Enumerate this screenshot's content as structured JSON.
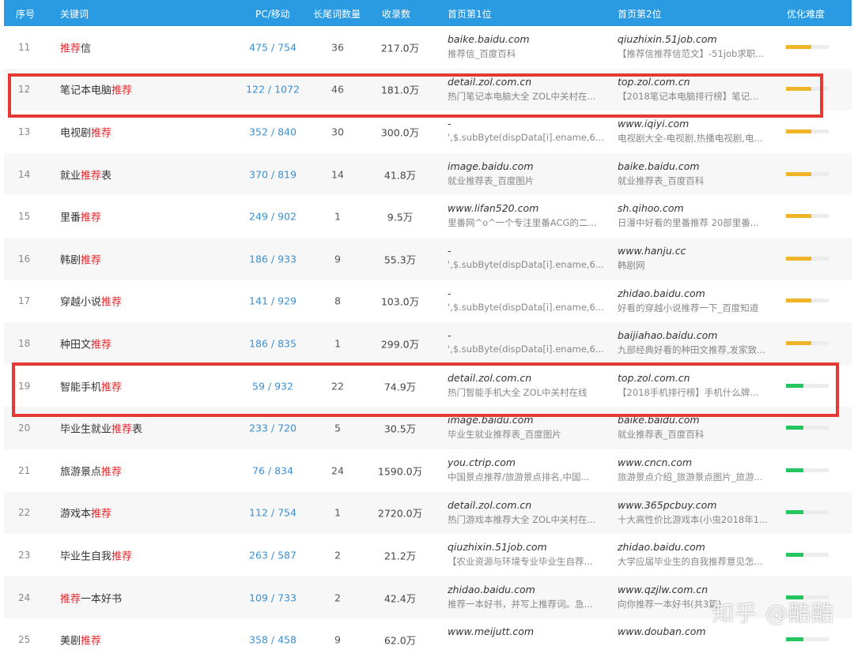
{
  "header": {
    "idx": "序号",
    "keyword": "关键词",
    "pc_mobile": "PC/移动",
    "longtail": "长尾词数量",
    "indexed": "收录数",
    "rank1": "首页第1位",
    "rank2": "首页第2位",
    "difficulty": "优化难度"
  },
  "colors": {
    "header": "#2a9ae3",
    "highlight": "#e8262b",
    "difficulty_medium": "#f0b429",
    "difficulty_low": "#22c55e",
    "annotation": "#e53935"
  },
  "rows": [
    {
      "idx": "11",
      "kw_pre": "",
      "kw_hl": "推荐",
      "kw_post": "信",
      "pc": "475 / 754",
      "lt": "36",
      "sl": "217.0万",
      "r1d": "baike.baidu.com",
      "r1t": "推荐信_百度百科",
      "r2d": "qiuzhixin.51job.com",
      "r2t": "【推荐信推荐信范文】-51job求职...",
      "difficulty": 0.6,
      "level": "medium"
    },
    {
      "idx": "12",
      "kw_pre": "笔记本电脑",
      "kw_hl": "推荐",
      "kw_post": "",
      "pc": "122 / 1072",
      "lt": "46",
      "sl": "181.0万",
      "r1d": "detail.zol.com.cn",
      "r1t": "热门笔记本电脑大全 ZOL中关村在...",
      "r2d": "top.zol.com.cn",
      "r2t": "【2018笔记本电脑排行榜】笔记...",
      "difficulty": 0.6,
      "level": "medium"
    },
    {
      "idx": "13",
      "kw_pre": "电视剧",
      "kw_hl": "推荐",
      "kw_post": "",
      "pc": "352 / 840",
      "lt": "30",
      "sl": "300.0万",
      "r1d": "-",
      "r1t": "',$.subByte(dispData[i].ename,6...",
      "r2d": "www.iqiyi.com",
      "r2t": "电视剧大全-电视剧,热播电视剧,电...",
      "difficulty": 0.6,
      "level": "medium"
    },
    {
      "idx": "14",
      "kw_pre": "就业",
      "kw_hl": "推荐",
      "kw_post": "表",
      "pc": "370 / 819",
      "lt": "14",
      "sl": "41.8万",
      "r1d": "image.baidu.com",
      "r1t": "就业推荐表_百度图片",
      "r2d": "baike.baidu.com",
      "r2t": "就业推荐表_百度百科",
      "difficulty": 0.6,
      "level": "medium"
    },
    {
      "idx": "15",
      "kw_pre": "里番",
      "kw_hl": "推荐",
      "kw_post": "",
      "pc": "249 / 902",
      "lt": "1",
      "sl": "9.5万",
      "r1d": "www.lifan520.com",
      "r1t": "里番网^o^一个专注里番ACG的二...",
      "r2d": "sh.qihoo.com",
      "r2t": "日漫中好看的里番推荐 20部里番...",
      "difficulty": 0.6,
      "level": "medium"
    },
    {
      "idx": "16",
      "kw_pre": "韩剧",
      "kw_hl": "推荐",
      "kw_post": "",
      "pc": "186 / 933",
      "lt": "9",
      "sl": "55.3万",
      "r1d": "-",
      "r1t": "',$.subByte(dispData[i].ename,6...",
      "r2d": "www.hanju.cc",
      "r2t": "韩剧网",
      "difficulty": 0.6,
      "level": "medium"
    },
    {
      "idx": "17",
      "kw_pre": "穿越小说",
      "kw_hl": "推荐",
      "kw_post": "",
      "pc": "141 / 929",
      "lt": "8",
      "sl": "103.0万",
      "r1d": "-",
      "r1t": "',$.subByte(dispData[i].ename,6...",
      "r2d": "zhidao.baidu.com",
      "r2t": "好看的穿越小说推荐一下_百度知道",
      "difficulty": 0.6,
      "level": "medium"
    },
    {
      "idx": "18",
      "kw_pre": "种田文",
      "kw_hl": "推荐",
      "kw_post": "",
      "pc": "186 / 835",
      "lt": "1",
      "sl": "299.0万",
      "r1d": "-",
      "r1t": "',$.subByte(dispData[i].ename,6...",
      "r2d": "baijiahao.baidu.com",
      "r2t": "九部经典好看的种田文推荐,发家致...",
      "difficulty": 0.6,
      "level": "medium"
    },
    {
      "idx": "19",
      "kw_pre": "智能手机",
      "kw_hl": "推荐",
      "kw_post": "",
      "pc": "59 / 932",
      "lt": "22",
      "sl": "74.9万",
      "r1d": "detail.zol.com.cn",
      "r1t": "热门智能手机大全 ZOL中关村在线",
      "r2d": "top.zol.com.cn",
      "r2t": "【2018手机排行榜】手机什么牌...",
      "difficulty": 0.4,
      "level": "low"
    },
    {
      "idx": "20",
      "kw_pre": "毕业生就业",
      "kw_hl": "推荐",
      "kw_post": "表",
      "pc": "233 / 720",
      "lt": "5",
      "sl": "30.5万",
      "r1d": "image.baidu.com",
      "r1t": "毕业生就业推荐表_百度图片",
      "r2d": "baike.baidu.com",
      "r2t": "就业推荐表_百度百科",
      "difficulty": 0.4,
      "level": "low"
    },
    {
      "idx": "21",
      "kw_pre": "旅游景点",
      "kw_hl": "推荐",
      "kw_post": "",
      "pc": "76 / 834",
      "lt": "24",
      "sl": "1590.0万",
      "r1d": "you.ctrip.com",
      "r1t": "中国景点推荐/旅游景点排名,中国...",
      "r2d": "www.cncn.com",
      "r2t": "旅游景点介绍_旅游景点图片_旅游...",
      "difficulty": 0.4,
      "level": "low"
    },
    {
      "idx": "22",
      "kw_pre": "游戏本",
      "kw_hl": "推荐",
      "kw_post": "",
      "pc": "112 / 754",
      "lt": "1",
      "sl": "2720.0万",
      "r1d": "detail.zol.com.cn",
      "r1t": "热门游戏本推荐大全 ZOL中关村在...",
      "r2d": "www.365pcbuy.com",
      "r2t": "十大高性价比游戏本(小虫2018年1...",
      "difficulty": 0.4,
      "level": "low"
    },
    {
      "idx": "23",
      "kw_pre": "毕业生自我",
      "kw_hl": "推荐",
      "kw_post": "",
      "pc": "263 / 587",
      "lt": "2",
      "sl": "21.2万",
      "r1d": "qiuzhixin.51job.com",
      "r1t": "【农业资源与环境专业毕业生自荐...",
      "r2d": "zhidao.baidu.com",
      "r2t": "大学应届毕业生的自我推荐意见怎...",
      "difficulty": 0.4,
      "level": "low"
    },
    {
      "idx": "24",
      "kw_pre": "",
      "kw_hl": "推荐",
      "kw_post": "一本好书",
      "pc": "109 / 733",
      "lt": "2",
      "sl": "42.4万",
      "r1d": "zhidao.baidu.com",
      "r1t": "推荐一本好书，并写上推荐词。急...",
      "r2d": "www.qzjlw.com.cn",
      "r2t": "向你推荐一本好书(共3篇)",
      "difficulty": 0.4,
      "level": "low"
    },
    {
      "idx": "25",
      "kw_pre": "美剧",
      "kw_hl": "推荐",
      "kw_post": "",
      "pc": "358 / 458",
      "lt": "9",
      "sl": "62.0万",
      "r1d": "www.meijutt.com",
      "r1t": "",
      "r2d": "www.douban.com",
      "r2t": "",
      "difficulty": 0.4,
      "level": "low"
    }
  ],
  "watermark": "知乎 @酷酷"
}
